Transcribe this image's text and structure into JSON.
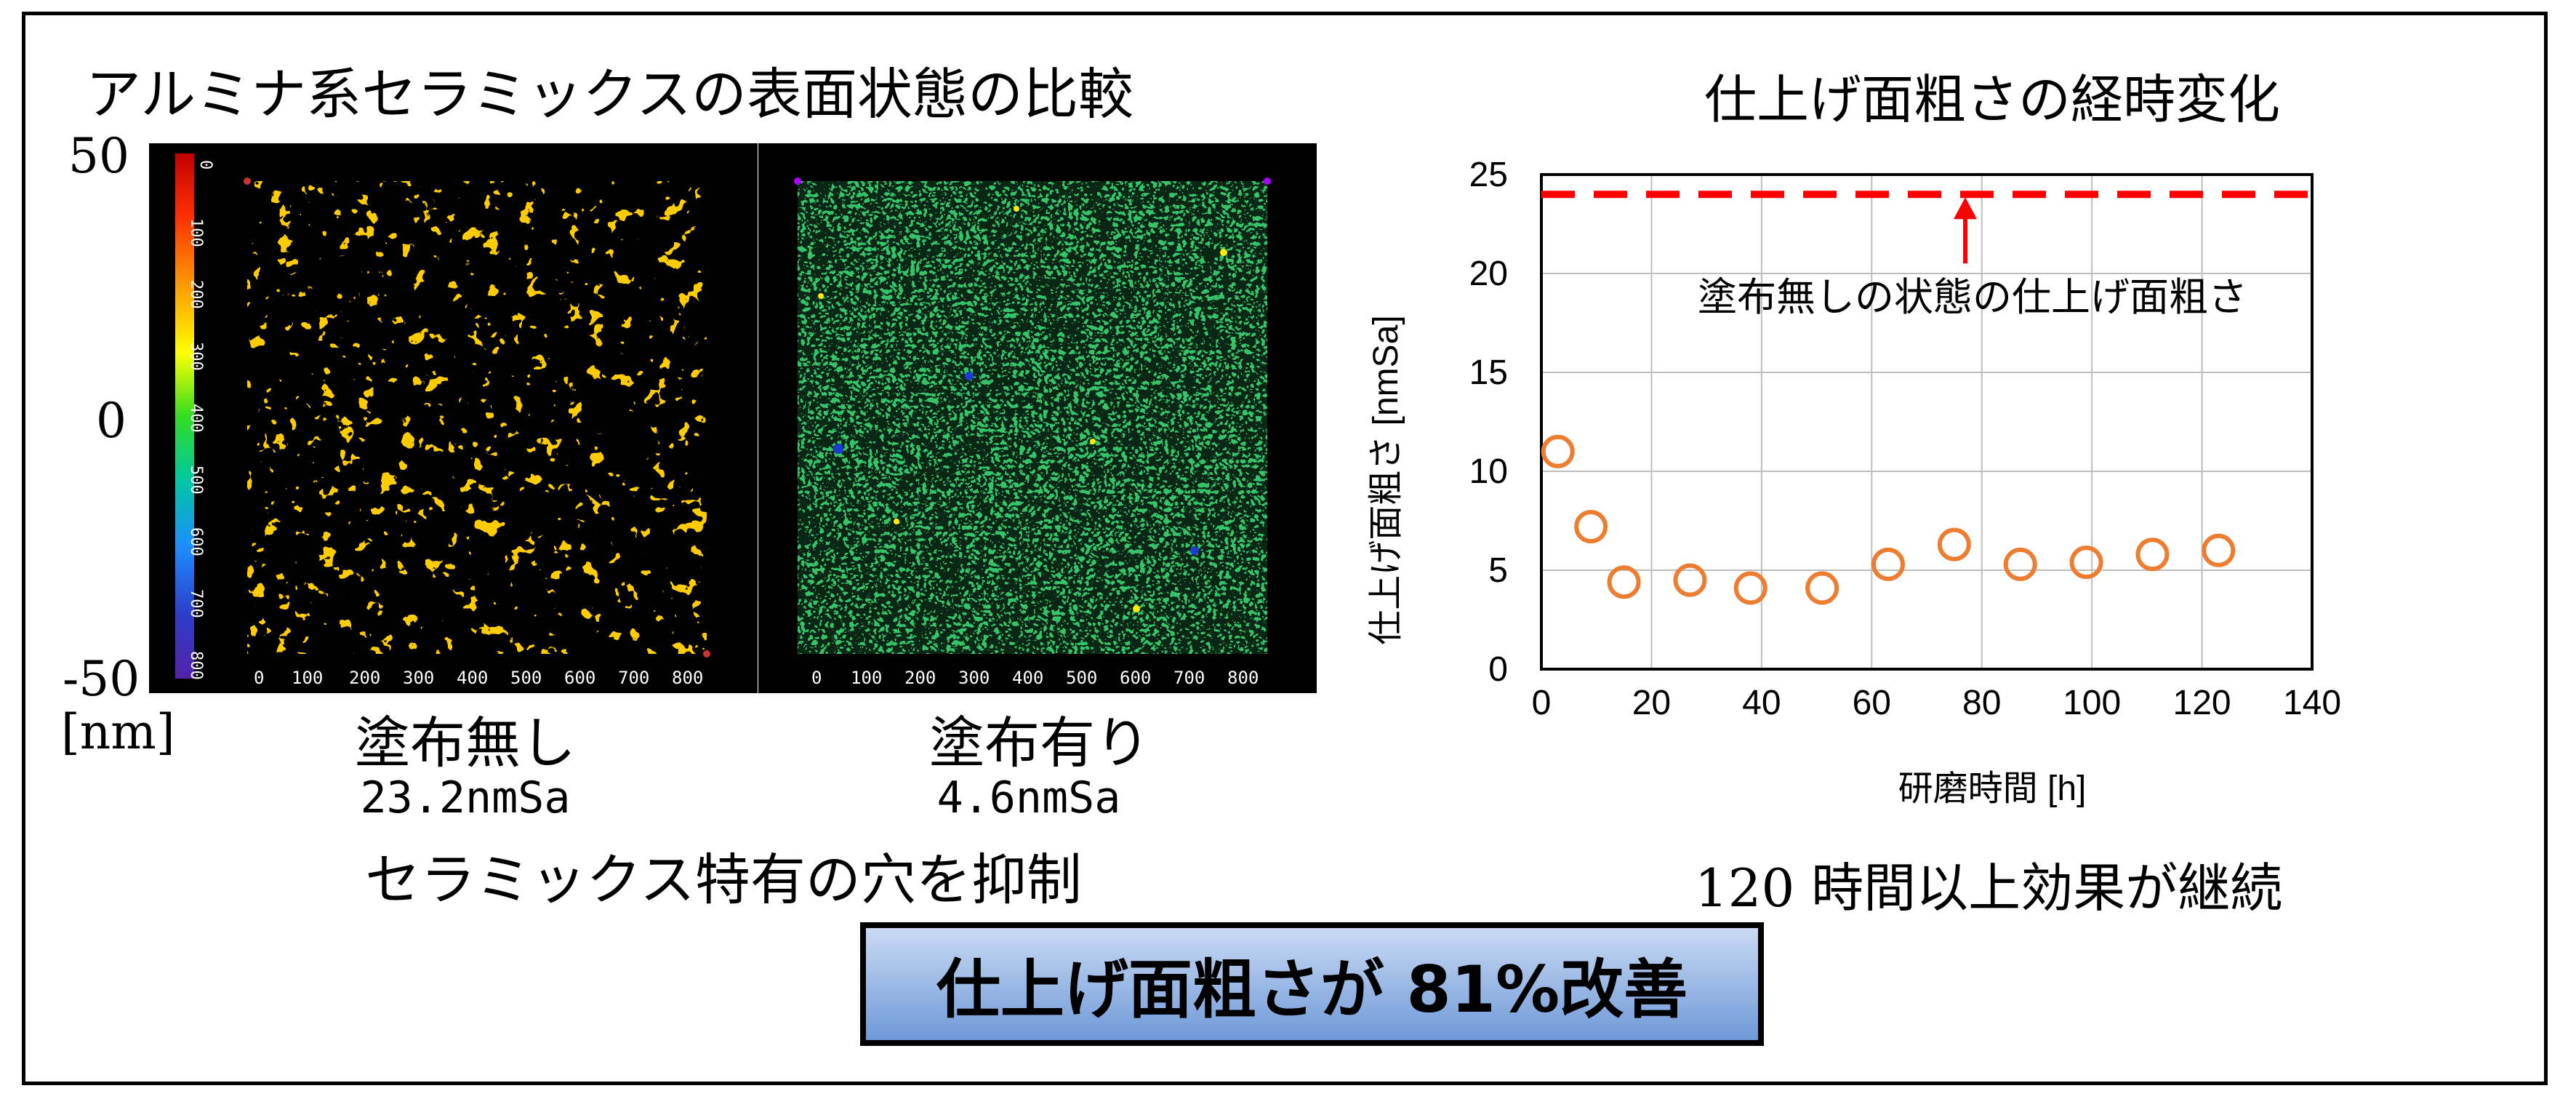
{
  "left_panel": {
    "title": "アルミナ系セラミックスの表面状態の比較",
    "scale_labels": [
      "50",
      "0",
      "-50"
    ],
    "scale_unit": "[nm]",
    "colorbar_ticks": [
      "0",
      "100",
      "200",
      "300",
      "400",
      "500",
      "600",
      "700",
      "800"
    ],
    "map_axis_ticks": [
      "0",
      "100",
      "200",
      "300",
      "400",
      "500",
      "600",
      "700",
      "800"
    ],
    "sample_a": {
      "label": "塗布無し",
      "value": "23.2nmSa"
    },
    "sample_b": {
      "label": "塗布有り",
      "value": "4.6nmSa"
    },
    "caption": "セラミックス特有の穴を抑制"
  },
  "right_panel": {
    "title": "仕上げ面粗さの経時変化",
    "caption": "120 時間以上効果が継続"
  },
  "banner": {
    "text": "仕上げ面粗さが 81%改善"
  },
  "colors": {
    "marker": "#ed7d31",
    "reference": "#ff0000",
    "banner_top": "#c9daf3",
    "banner_bottom": "#6f99d8"
  },
  "chart_data": {
    "type": "scatter",
    "title": "仕上げ面粗さの経時変化",
    "xlabel": "研磨時間 [h]",
    "ylabel": "仕上げ面粗さ [nmSa]",
    "xlim": [
      0,
      140
    ],
    "ylim": [
      0,
      25
    ],
    "xticks": [
      "0",
      "20",
      "40",
      "60",
      "80",
      "100",
      "120",
      "140"
    ],
    "yticks": [
      "0",
      "5",
      "10",
      "15",
      "20",
      "25"
    ],
    "grid": true,
    "series": [
      {
        "x": [
          3,
          9,
          15,
          27,
          38,
          51,
          63,
          75,
          87,
          99,
          111,
          123
        ],
        "y": [
          11,
          7.2,
          4.4,
          4.5,
          4.1,
          4.1,
          5.3,
          6.3,
          5.3,
          5.4,
          5.8,
          6.0
        ],
        "marker": "open-circle"
      }
    ],
    "reference_line": {
      "y": 24,
      "style": "dashed"
    },
    "annotation": {
      "text": "塗布無しの状態の仕上げ面粗さ",
      "x": 77,
      "y": 24
    }
  }
}
